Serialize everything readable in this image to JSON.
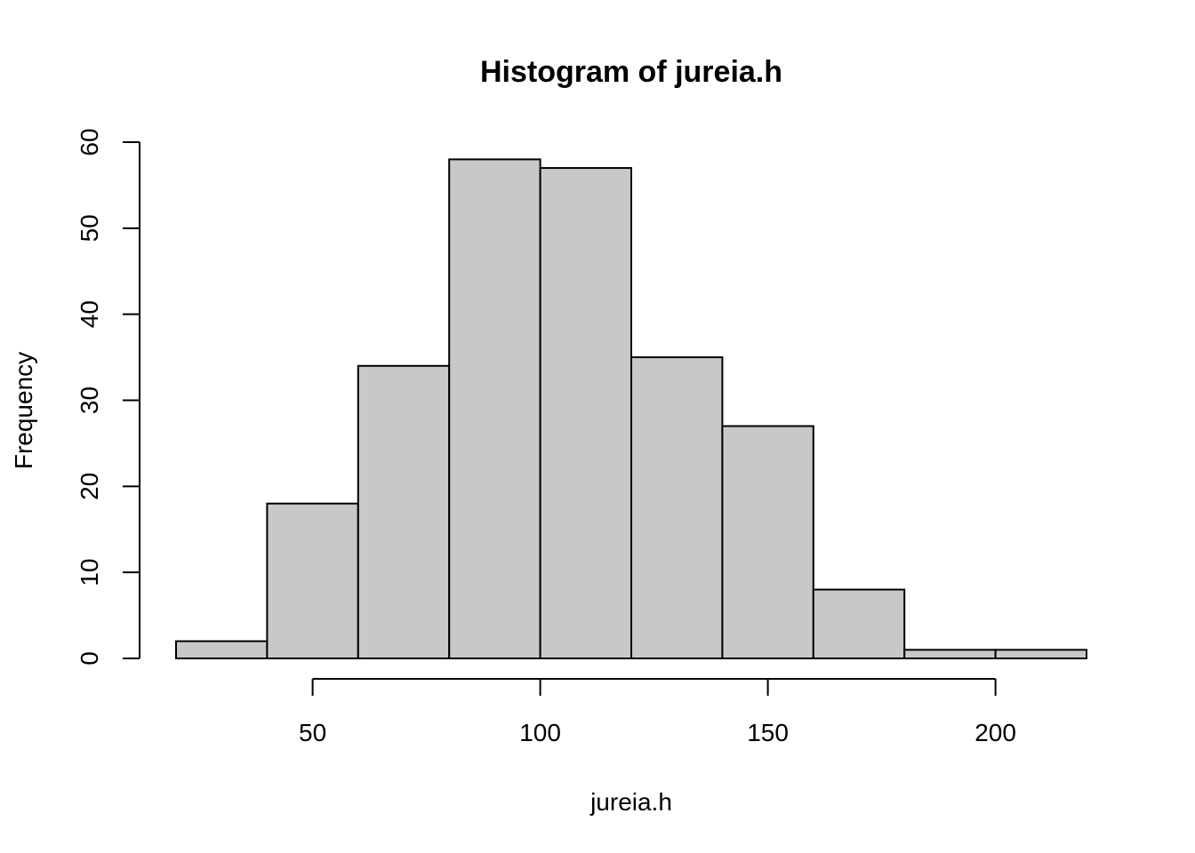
{
  "chart_data": {
    "type": "bar",
    "subtype": "histogram",
    "title": "Histogram of jureia.h",
    "xlabel": "jureia.h",
    "ylabel": "Frequency",
    "bin_edges": [
      20,
      40,
      60,
      80,
      100,
      120,
      140,
      160,
      180,
      200,
      220
    ],
    "values": [
      2,
      18,
      34,
      58,
      57,
      35,
      27,
      8,
      1,
      1
    ],
    "xlim": [
      20,
      220
    ],
    "ylim": [
      0,
      60
    ],
    "x_ticks": [
      50,
      100,
      150,
      200
    ],
    "y_ticks": [
      0,
      10,
      20,
      30,
      40,
      50,
      60
    ],
    "bar_color": "#c8c8c8",
    "edge_color": "#000000",
    "grid": false,
    "legend": "none"
  }
}
